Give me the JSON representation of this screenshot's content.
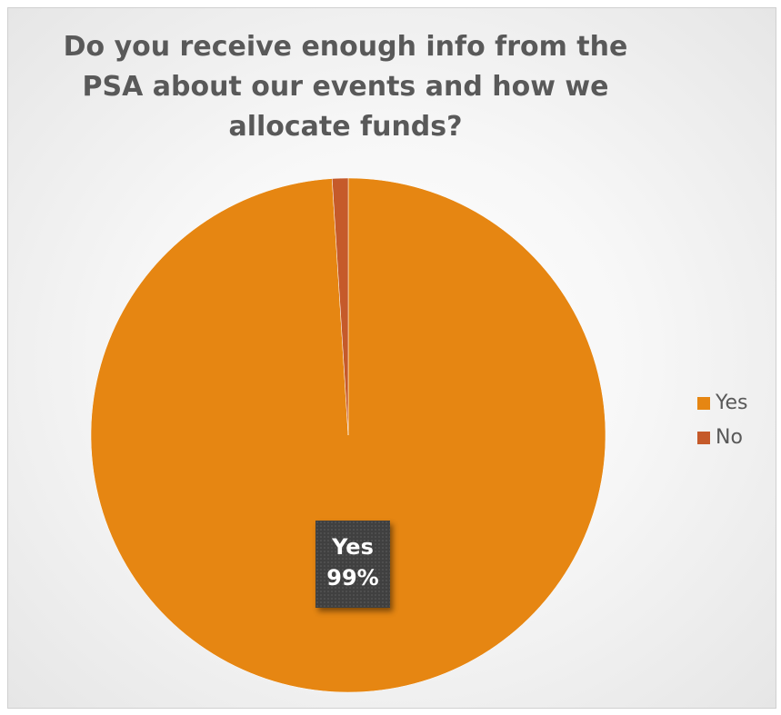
{
  "chart_data": {
    "type": "pie",
    "title": "Do you receive enough info from the PSA about our events and how we allocate funds?",
    "categories": [
      "Yes",
      "No"
    ],
    "values": [
      99,
      1
    ],
    "colors": [
      "#e68612",
      "#c55a2a"
    ],
    "legend": {
      "position": "right",
      "entries": [
        "Yes",
        "No"
      ]
    },
    "data_labels": [
      {
        "category": "Yes",
        "percent": "99%"
      }
    ]
  }
}
